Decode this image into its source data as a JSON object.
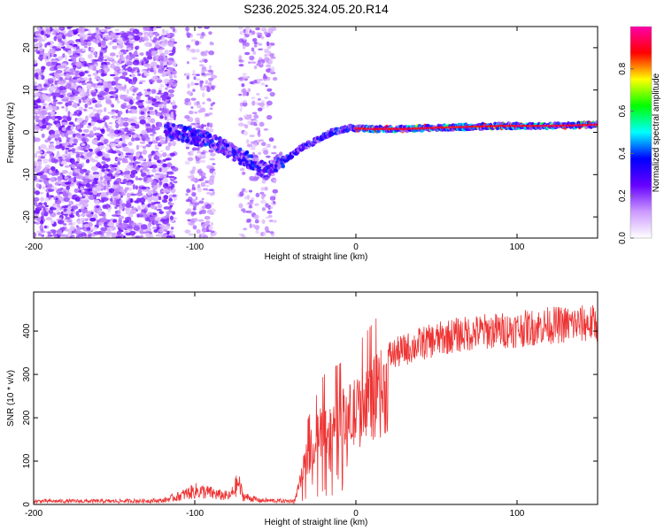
{
  "title": "S236.2025.324.05.20.R14",
  "chart_data": [
    {
      "type": "heatmap",
      "xlabel": "Height of straight line (km)",
      "ylabel": "Frequency (Hz)",
      "xlim": [
        -200,
        150
      ],
      "ylim": [
        -25,
        25
      ],
      "xticks": [
        -200,
        -100,
        0,
        100
      ],
      "xtick_labels": [
        "-200",
        "-100",
        "0",
        "100"
      ],
      "yticks": [
        -20,
        -10,
        0,
        10,
        20
      ],
      "ytick_labels": [
        "-20",
        "-10",
        "0",
        "10",
        "20"
      ],
      "ridge": [
        {
          "x": -118,
          "y": 0.5
        },
        {
          "x": -105,
          "y": -0.5
        },
        {
          "x": -95,
          "y": -1.5
        },
        {
          "x": -85,
          "y": -3
        },
        {
          "x": -75,
          "y": -5
        },
        {
          "x": -65,
          "y": -7
        },
        {
          "x": -55,
          "y": -9.5
        },
        {
          "x": -48,
          "y": -7
        },
        {
          "x": -42,
          "y": -6
        },
        {
          "x": -35,
          "y": -4
        },
        {
          "x": -25,
          "y": -2
        },
        {
          "x": -15,
          "y": 0
        },
        {
          "x": -5,
          "y": 1
        },
        {
          "x": 10,
          "y": 0.8
        },
        {
          "x": 30,
          "y": 0.8
        },
        {
          "x": 60,
          "y": 1.2
        },
        {
          "x": 90,
          "y": 1.5
        },
        {
          "x": 120,
          "y": 1.5
        },
        {
          "x": 150,
          "y": 1.8
        }
      ],
      "colorbar": {
        "label": "Normalized spectral amplitude",
        "range": [
          0,
          1
        ],
        "ticks": [
          0,
          0.2,
          0.4,
          0.6,
          0.8
        ],
        "tick_labels": [
          "0.0",
          "0.2",
          "0.4",
          "0.6",
          "0.8"
        ],
        "colors": [
          "#ffffff",
          "#cc99ff",
          "#6600ff",
          "#0000ff",
          "#00ffff",
          "#00ff00",
          "#ffff00",
          "#ff0000",
          "#ff00aa"
        ]
      }
    },
    {
      "type": "line",
      "xlabel": "Height of straight line (km)",
      "ylabel": "SNR (10 * v/v)",
      "xlim": [
        -200,
        150
      ],
      "ylim": [
        0,
        490
      ],
      "xticks": [
        -200,
        -100,
        0,
        100
      ],
      "xtick_labels": [
        "-200",
        "-100",
        "0",
        "100"
      ],
      "yticks": [
        0,
        100,
        200,
        300,
        400
      ],
      "ytick_labels": [
        "0",
        "100",
        "200",
        "300",
        "400"
      ],
      "color": "#ee3333",
      "envelope": [
        {
          "x": -200,
          "y": 12
        },
        {
          "x": -150,
          "y": 12
        },
        {
          "x": -120,
          "y": 14
        },
        {
          "x": -110,
          "y": 30
        },
        {
          "x": -100,
          "y": 50
        },
        {
          "x": -92,
          "y": 45
        },
        {
          "x": -85,
          "y": 35
        },
        {
          "x": -78,
          "y": 30
        },
        {
          "x": -73,
          "y": 80
        },
        {
          "x": -70,
          "y": 30
        },
        {
          "x": -60,
          "y": 15
        },
        {
          "x": -38,
          "y": 12
        },
        {
          "x": -35,
          "y": 60
        },
        {
          "x": -30,
          "y": 150
        },
        {
          "x": -20,
          "y": 230
        },
        {
          "x": -10,
          "y": 250
        },
        {
          "x": 0,
          "y": 280
        },
        {
          "x": 10,
          "y": 320
        },
        {
          "x": 20,
          "y": 360
        },
        {
          "x": 40,
          "y": 390
        },
        {
          "x": 60,
          "y": 410
        },
        {
          "x": 80,
          "y": 420
        },
        {
          "x": 100,
          "y": 425
        },
        {
          "x": 120,
          "y": 435
        },
        {
          "x": 150,
          "y": 440
        }
      ]
    }
  ]
}
